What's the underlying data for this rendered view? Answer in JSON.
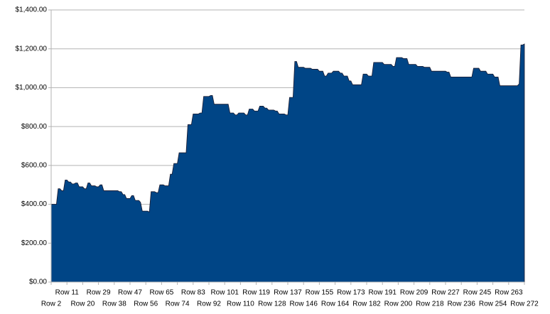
{
  "chart_data": {
    "type": "area",
    "color": "#004586",
    "grid": true,
    "ylim": [
      0,
      1400
    ],
    "yticks": [
      {
        "value": 0,
        "label": "$0.00"
      },
      {
        "value": 200,
        "label": "$200.00"
      },
      {
        "value": 400,
        "label": "$400.00"
      },
      {
        "value": 600,
        "label": "$600.00"
      },
      {
        "value": 800,
        "label": "$800.00"
      },
      {
        "value": 1000,
        "label": "$1,000.00"
      },
      {
        "value": 1200,
        "label": "$1,200.00"
      },
      {
        "value": 1400,
        "label": "$1,400.00"
      }
    ],
    "categories": [
      "Row 2",
      null,
      null,
      null,
      null,
      null,
      null,
      null,
      null,
      "Row 11",
      null,
      null,
      null,
      null,
      null,
      null,
      null,
      null,
      "Row 20",
      null,
      null,
      null,
      null,
      null,
      null,
      null,
      null,
      "Row 29",
      null,
      null,
      null,
      null,
      null,
      null,
      null,
      null,
      "Row 38",
      null,
      null,
      null,
      null,
      null,
      null,
      null,
      null,
      "Row 47",
      null,
      null,
      null,
      null,
      null,
      null,
      null,
      null,
      "Row 56",
      null,
      null,
      null,
      null,
      null,
      null,
      null,
      null,
      "Row 65",
      null,
      null,
      null,
      null,
      null,
      null,
      null,
      null,
      "Row 74",
      null,
      null,
      null,
      null,
      null,
      null,
      null,
      null,
      "Row 83",
      null,
      null,
      null,
      null,
      null,
      null,
      null,
      null,
      "Row 92",
      null,
      null,
      null,
      null,
      null,
      null,
      null,
      null,
      "Row 101",
      null,
      null,
      null,
      null,
      null,
      null,
      null,
      null,
      "Row 110",
      null,
      null,
      null,
      null,
      null,
      null,
      null,
      null,
      "Row 119",
      null,
      null,
      null,
      null,
      null,
      null,
      null,
      null,
      "Row 128",
      null,
      null,
      null,
      null,
      null,
      null,
      null,
      null,
      "Row 137",
      null,
      null,
      null,
      null,
      null,
      null,
      null,
      null,
      "Row 146",
      null,
      null,
      null,
      null,
      null,
      null,
      null,
      null,
      "Row 155",
      null,
      null,
      null,
      null,
      null,
      null,
      null,
      null,
      "Row 164",
      null,
      null,
      null,
      null,
      null,
      null,
      null,
      null,
      "Row 173",
      null,
      null,
      null,
      null,
      null,
      null,
      null,
      null,
      "Row 182",
      null,
      null,
      null,
      null,
      null,
      null,
      null,
      null,
      "Row 191",
      null,
      null,
      null,
      null,
      null,
      null,
      null,
      null,
      "Row 200",
      null,
      null,
      null,
      null,
      null,
      null,
      null,
      null,
      "Row 209",
      null,
      null,
      null,
      null,
      null,
      null,
      null,
      null,
      "Row 218",
      null,
      null,
      null,
      null,
      null,
      null,
      null,
      null,
      "Row 227",
      null,
      null,
      null,
      null,
      null,
      null,
      null,
      null,
      "Row 236",
      null,
      null,
      null,
      null,
      null,
      null,
      null,
      null,
      "Row 245",
      null,
      null,
      null,
      null,
      null,
      null,
      null,
      null,
      "Row 254",
      null,
      null,
      null,
      null,
      null,
      null,
      null,
      null,
      "Row 263",
      null,
      null,
      null,
      null,
      null,
      null,
      null,
      null,
      "Row 272"
    ],
    "values": [
      400,
      400,
      400,
      400,
      480,
      480,
      470,
      470,
      525,
      525,
      515,
      515,
      505,
      505,
      510,
      510,
      490,
      490,
      490,
      480,
      480,
      510,
      510,
      495,
      495,
      495,
      490,
      490,
      500,
      500,
      470,
      470,
      470,
      470,
      470,
      470,
      470,
      470,
      470,
      465,
      465,
      450,
      450,
      430,
      430,
      430,
      445,
      445,
      420,
      420,
      420,
      410,
      365,
      365,
      365,
      365,
      360,
      465,
      465,
      465,
      460,
      460,
      500,
      500,
      500,
      495,
      495,
      495,
      555,
      555,
      610,
      610,
      610,
      665,
      665,
      665,
      665,
      665,
      810,
      810,
      810,
      865,
      865,
      865,
      865,
      870,
      870,
      955,
      955,
      955,
      955,
      960,
      960,
      915,
      915,
      915,
      915,
      915,
      915,
      915,
      915,
      915,
      870,
      870,
      870,
      860,
      860,
      870,
      870,
      870,
      870,
      860,
      860,
      890,
      890,
      890,
      880,
      880,
      880,
      905,
      905,
      905,
      895,
      895,
      885,
      885,
      885,
      885,
      880,
      880,
      865,
      865,
      865,
      865,
      860,
      860,
      950,
      950,
      950,
      1135,
      1135,
      1105,
      1105,
      1105,
      1105,
      1100,
      1100,
      1100,
      1100,
      1095,
      1095,
      1095,
      1095,
      1085,
      1085,
      1085,
      1060,
      1060,
      1075,
      1075,
      1075,
      1085,
      1085,
      1085,
      1085,
      1075,
      1075,
      1060,
      1060,
      1060,
      1035,
      1035,
      1015,
      1015,
      1015,
      1015,
      1015,
      1015,
      1070,
      1070,
      1070,
      1060,
      1060,
      1060,
      1130,
      1130,
      1130,
      1130,
      1130,
      1130,
      1120,
      1120,
      1120,
      1120,
      1120,
      1110,
      1110,
      1155,
      1155,
      1155,
      1155,
      1150,
      1150,
      1150,
      1120,
      1120,
      1120,
      1120,
      1120,
      1110,
      1110,
      1110,
      1110,
      1105,
      1105,
      1105,
      1105,
      1085,
      1085,
      1085,
      1085,
      1085,
      1085,
      1085,
      1085,
      1085,
      1080,
      1080,
      1055,
      1055,
      1055,
      1055,
      1055,
      1055,
      1055,
      1055,
      1055,
      1055,
      1055,
      1055,
      1055,
      1100,
      1100,
      1100,
      1100,
      1085,
      1085,
      1085,
      1085,
      1070,
      1070,
      1070,
      1070,
      1055,
      1055,
      1055,
      1010,
      1010,
      1010,
      1010,
      1010,
      1010,
      1010,
      1010,
      1010,
      1010,
      1010,
      1020,
      1220,
      1220,
      1225
    ]
  }
}
